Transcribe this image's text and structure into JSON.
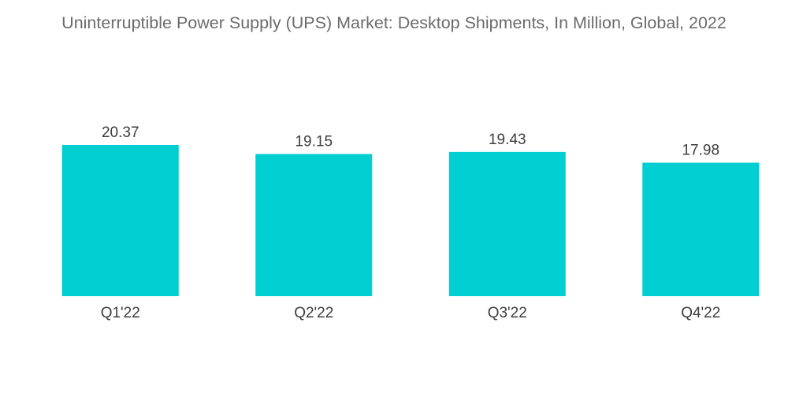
{
  "chart_data": {
    "type": "bar",
    "title": "Uninterruptible Power Supply (UPS) Market: Desktop Shipments, In Million, Global, 2022",
    "categories": [
      "Q1'22",
      "Q2'22",
      "Q3'22",
      "Q4'22"
    ],
    "values": [
      20.37,
      19.15,
      19.43,
      17.98
    ],
    "value_labels": [
      "20.37",
      "19.15",
      "19.43",
      "17.98"
    ],
    "xlabel": "",
    "ylabel": "",
    "ylim": [
      0,
      20.37
    ],
    "grid": false,
    "legend": "none",
    "bar_color": "#00ced1"
  }
}
